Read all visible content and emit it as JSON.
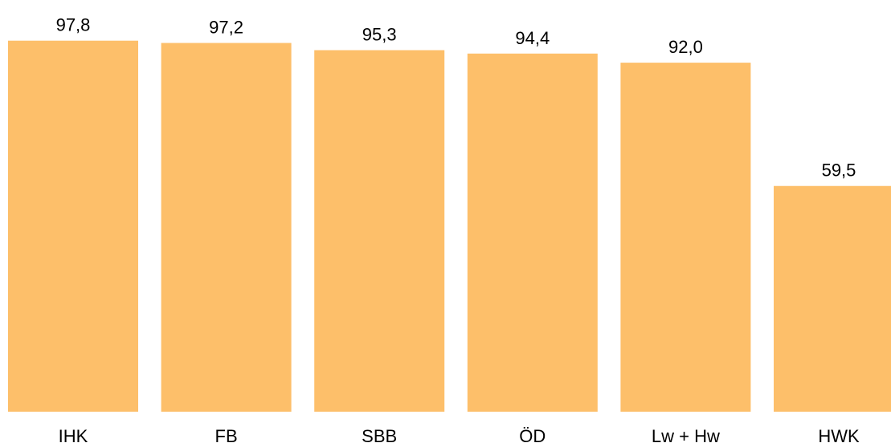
{
  "chart_data": {
    "type": "bar",
    "categories": [
      "IHK",
      "FB",
      "SBB",
      "ÖD",
      "Lw + Hw",
      "HWK"
    ],
    "values": [
      97.8,
      97.2,
      95.3,
      94.4,
      92.0,
      59.5
    ],
    "value_labels": [
      "97,8",
      "97,2",
      "95,3",
      "94,4",
      "92,0",
      "59,5"
    ],
    "ylim": [
      0,
      100
    ],
    "grid": false,
    "legend": "none",
    "colors": {
      "bar": "#FDBF6A",
      "text": "#000000"
    }
  }
}
